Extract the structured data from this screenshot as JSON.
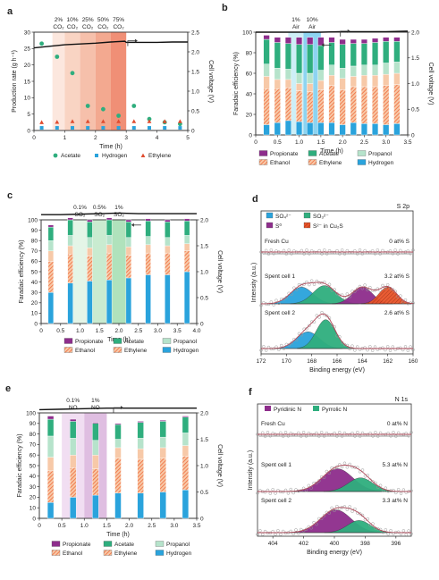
{
  "hatch": [
    "Ethanol",
    "Ethylene",
    "S^2- in Cu2S"
  ],
  "colors": {
    "propionate": "#8e2d8c",
    "ethanol": "#f06a3a",
    "acetate": "#2fae7e",
    "ethylene": "#f7c9a8",
    "propanol": "#b6e3cb",
    "hydrogen": "#2aa3dc",
    "voltage": "#111111",
    "so4": "#2aa3dc",
    "so3": "#2fae7e",
    "s0": "#8e2d8c",
    "s2": "#e8542a",
    "raw": "#9a9a9a",
    "fit": "#b24c5c",
    "pyridinic": "#8e2d8c",
    "pyrrolic": "#2fae7e"
  },
  "chart_data": [
    {
      "panel": "a",
      "type": "scatter",
      "title": "",
      "xlabel": "Time (h)",
      "ylabel": "Production rate (g h⁻¹)",
      "y2label": "Cell voltage (V)",
      "xlim": [
        0,
        5
      ],
      "ylim": [
        0,
        30
      ],
      "y2lim": [
        0,
        2.5
      ],
      "xticks": [
        "0",
        "1",
        "2",
        "3",
        "4",
        "5"
      ],
      "yticks": [
        "0",
        "5",
        "10",
        "15",
        "20",
        "25",
        "30"
      ],
      "y2ticks": [
        "0",
        "0.5",
        "1.0",
        "1.5",
        "2.0",
        "2.5"
      ],
      "regions": [
        {
          "label1": "2%",
          "label2": "CO₂",
          "x0": 0.6,
          "x1": 1.0
        },
        {
          "label1": "10%",
          "label2": "CO₂",
          "x0": 1.0,
          "x1": 1.5
        },
        {
          "label1": "25%",
          "label2": "CO₂",
          "x0": 1.5,
          "x1": 2.0
        },
        {
          "label1": "50%",
          "label2": "CO₂",
          "x0": 2.0,
          "x1": 2.5
        },
        {
          "label1": "75%",
          "label2": "CO₂",
          "x0": 2.5,
          "x1": 3.0
        }
      ],
      "series": [
        {
          "name": "Acetate",
          "x": [
            0.25,
            0.75,
            1.25,
            1.75,
            2.25,
            2.75,
            3.25,
            3.75,
            4.25,
            4.75
          ],
          "y": [
            26.5,
            22.5,
            17.5,
            7.5,
            6.5,
            4.5,
            7.5,
            3.5,
            2.5,
            2.0
          ]
        },
        {
          "name": "Hydrogen",
          "x": [
            0.25,
            0.75,
            1.25,
            1.75,
            2.25,
            2.75,
            3.25,
            3.75,
            4.25,
            4.75
          ],
          "y": [
            0.8,
            0.8,
            0.8,
            0.8,
            0.8,
            0.8,
            0.8,
            0.8,
            0.8,
            0.8
          ]
        },
        {
          "name": "Ethylene",
          "x": [
            0.25,
            0.75,
            1.25,
            1.75,
            2.25,
            2.75,
            3.25,
            3.75,
            4.25,
            4.75
          ],
          "y": [
            2.5,
            2.6,
            2.8,
            2.8,
            2.8,
            2.8,
            2.8,
            2.8,
            2.8,
            2.8
          ]
        }
      ],
      "voltage": {
        "x": [
          0,
          0.5,
          1,
          1.5,
          2,
          2.5,
          2.95,
          3.0,
          3.5,
          4,
          4.5,
          5
        ],
        "y": [
          2.1,
          2.14,
          2.18,
          2.2,
          2.22,
          2.25,
          2.27,
          2.24,
          2.24,
          2.24,
          2.25,
          2.25
        ]
      },
      "legend": [
        "Acetate",
        "Hydrogen",
        "Ethylene"
      ]
    },
    {
      "panel": "b",
      "type": "bar",
      "title": "",
      "xlabel": "Time (h)",
      "ylabel": "Faradaic efficiency (%)",
      "y2label": "Cell voltage (V)",
      "xlim": [
        0,
        3.5
      ],
      "ylim": [
        0,
        100
      ],
      "y2lim": [
        0,
        2.0
      ],
      "xticks": [
        "0",
        "0.5",
        "1.0",
        "1.5",
        "2.0",
        "2.5",
        "3.0",
        "3.5"
      ],
      "yticks": [
        "0",
        "20",
        "40",
        "60",
        "80",
        "100"
      ],
      "y2ticks": [
        "0",
        "0.5",
        "1.0",
        "1.5",
        "2.0"
      ],
      "regions": [
        {
          "label1": "1%",
          "label2": "Air",
          "x0": 0.75,
          "x1": 1.1
        },
        {
          "label1": "10%",
          "label2": "Air",
          "x0": 1.1,
          "x1": 1.5
        }
      ],
      "x": [
        0.25,
        0.5,
        0.75,
        1.0,
        1.25,
        1.5,
        1.75,
        2.0,
        2.25,
        2.5,
        2.75,
        3.0,
        3.25
      ],
      "stack": [
        {
          "name": "Hydrogen",
          "values": [
            10,
            12,
            14,
            13,
            12,
            12,
            12,
            10,
            12,
            11,
            11,
            10,
            11
          ]
        },
        {
          "name": "Ethylene",
          "values": [
            35,
            33,
            32,
            30,
            30,
            32,
            36,
            34,
            35,
            36,
            36,
            38,
            38
          ]
        },
        {
          "name": "Ethanol",
          "values": [
            12,
            9,
            8,
            7,
            8,
            9,
            10,
            11,
            10,
            11,
            11,
            11,
            11
          ]
        },
        {
          "name": "Propanol",
          "values": [
            12,
            11,
            10,
            10,
            10,
            10,
            10,
            10,
            10,
            10,
            10,
            11,
            11
          ]
        },
        {
          "name": "Acetate",
          "values": [
            24,
            25,
            25,
            28,
            28,
            24,
            22,
            23,
            22,
            21,
            22,
            21,
            20
          ]
        },
        {
          "name": "Propionate",
          "values": [
            4,
            5,
            6,
            7,
            7,
            8,
            5,
            5,
            4,
            4,
            4,
            4,
            4
          ]
        }
      ],
      "voltage": {
        "x": [
          0,
          0.5,
          1.0,
          1.5,
          2.0,
          2.5,
          3.0,
          3.5
        ],
        "y": [
          2.0,
          2.0,
          2.0,
          2.0,
          2.01,
          2.01,
          2.01,
          2.02
        ]
      },
      "legend": [
        "Propionate",
        "Acetate",
        "Propanol",
        "Ethanol",
        "Ethylene",
        "Hydrogen"
      ]
    },
    {
      "panel": "c",
      "type": "bar",
      "title": "",
      "xlabel": "Time (h)",
      "ylabel": "Faradaic efficiency (%)",
      "y2label": "Cell voltage (V)",
      "xlim": [
        0,
        4.0
      ],
      "ylim": [
        0,
        100
      ],
      "y2lim": [
        0,
        2.0
      ],
      "xticks": [
        "0",
        "0.5",
        "1.0",
        "1.5",
        "2.0",
        "2.5",
        "3.0",
        "3.5",
        "4.0"
      ],
      "yticks": [
        "0",
        "10",
        "20",
        "30",
        "40",
        "50",
        "60",
        "70",
        "80",
        "90",
        "100"
      ],
      "y2ticks": [
        "0",
        "0.5",
        "1.0",
        "1.5",
        "2.0"
      ],
      "regions": [
        {
          "label1": "0.1%",
          "label2": "SO₂",
          "x0": 0.75,
          "x1": 1.25
        },
        {
          "label1": "0.5%",
          "label2": "SO₂",
          "x0": 1.25,
          "x1": 1.75
        },
        {
          "label1": "1%",
          "label2": "SO₂",
          "x0": 1.75,
          "x1": 2.25
        }
      ],
      "x": [
        0.25,
        0.75,
        1.25,
        1.75,
        2.25,
        2.75,
        3.25,
        3.75
      ],
      "stack": [
        {
          "name": "Hydrogen",
          "values": [
            30,
            39,
            41,
            42,
            44,
            47,
            47,
            50
          ]
        },
        {
          "name": "Ethylene",
          "values": [
            30,
            28,
            24,
            26,
            22,
            21,
            21,
            20
          ]
        },
        {
          "name": "Ethanol",
          "values": [
            10,
            8,
            8,
            8,
            8,
            8,
            7,
            7
          ]
        },
        {
          "name": "Propanol",
          "values": [
            10,
            10,
            10,
            9,
            9,
            8,
            8,
            8
          ]
        },
        {
          "name": "Acetate",
          "values": [
            13,
            15,
            15,
            15,
            15,
            15,
            15,
            14
          ]
        },
        {
          "name": "Propionate",
          "values": [
            2,
            2,
            2,
            2,
            2,
            2,
            2,
            2
          ]
        }
      ],
      "voltage": {
        "x": [
          0,
          0.5,
          1.0,
          1.5,
          2.0,
          2.5,
          3.0,
          3.5,
          4.0
        ],
        "y": [
          2.1,
          2.1,
          2.11,
          2.12,
          2.13,
          2.12,
          2.12,
          2.12,
          2.12
        ]
      },
      "legend": [
        "Propionate",
        "Acetate",
        "Propanol",
        "Ethanol",
        "Ethylene",
        "Hydrogen"
      ]
    },
    {
      "panel": "d",
      "type": "line",
      "title": "S 2p",
      "xlabel": "Binding energy (eV)",
      "ylabel": "Intensity (a.u.)",
      "xlim": [
        172,
        160
      ],
      "xticks": [
        "172",
        "170",
        "168",
        "166",
        "164",
        "162",
        "160"
      ],
      "legend": [
        "SO₄²⁻",
        "SO₃²⁻",
        "S⁰",
        "S²⁻ in Cu₂S"
      ],
      "spectra": [
        {
          "label": "Fresh Cu",
          "value": "0 at% S",
          "peaks": []
        },
        {
          "label": "Spent cell 1",
          "value": "3.2 at% S",
          "peaks": [
            {
              "name": "SO₄²⁻",
              "center": 168.8,
              "height": 0.55,
              "width": 0.9
            },
            {
              "name": "SO₃²⁻",
              "center": 167.0,
              "height": 0.6,
              "width": 0.9
            },
            {
              "name": "S⁰",
              "center": 164.0,
              "height": 0.55,
              "width": 0.8
            },
            {
              "name": "S²⁻ in Cu₂S",
              "center": 162.0,
              "height": 0.55,
              "width": 0.7
            }
          ]
        },
        {
          "label": "Spent cell 2",
          "value": "2.6 at% S",
          "peaks": [
            {
              "name": "SO₄²⁻",
              "center": 168.3,
              "height": 0.55,
              "width": 0.9
            },
            {
              "name": "SO₃²⁻",
              "center": 166.9,
              "height": 0.95,
              "width": 0.75
            }
          ]
        }
      ]
    },
    {
      "panel": "e",
      "type": "bar",
      "title": "",
      "xlabel": "Time (h)",
      "ylabel": "Faradaic efficiency (%)",
      "y2label": "Cell voltage (V)",
      "xlim": [
        0,
        3.5
      ],
      "ylim": [
        0,
        100
      ],
      "y2lim": [
        0,
        2.0
      ],
      "xticks": [
        "0",
        "0.5",
        "1.0",
        "1.5",
        "2.0",
        "2.5",
        "3.0",
        "3.5"
      ],
      "yticks": [
        "0",
        "10",
        "20",
        "30",
        "40",
        "50",
        "60",
        "70",
        "80",
        "90",
        "100"
      ],
      "y2ticks": [
        "0",
        "0.5",
        "1.0",
        "1.5",
        "2.0"
      ],
      "regions": [
        {
          "label1": "0.1%",
          "label2": "NO",
          "x0": 0.5,
          "x1": 1.0
        },
        {
          "label1": "1%",
          "label2": "NO",
          "x0": 1.0,
          "x1": 1.5
        }
      ],
      "x": [
        0.25,
        0.75,
        1.25,
        1.75,
        2.25,
        2.75,
        3.25
      ],
      "stack": [
        {
          "name": "Hydrogen",
          "values": [
            15,
            20,
            22,
            24,
            24,
            25,
            27
          ]
        },
        {
          "name": "Ethylene",
          "values": [
            30,
            28,
            25,
            33,
            32,
            32,
            32
          ]
        },
        {
          "name": "Ethanol",
          "values": [
            13,
            12,
            13,
            10,
            10,
            10,
            10
          ]
        },
        {
          "name": "Propanol",
          "values": [
            20,
            16,
            14,
            8,
            10,
            10,
            12
          ]
        },
        {
          "name": "Acetate",
          "values": [
            16,
            16,
            16,
            14,
            15,
            15,
            15
          ]
        },
        {
          "name": "Propionate",
          "values": [
            3,
            2,
            1,
            1,
            1,
            1,
            1
          ]
        }
      ],
      "voltage": {
        "x": [
          0,
          0.5,
          1.0,
          1.5,
          2.0,
          2.5,
          3.0,
          3.5
        ],
        "y": [
          2.06,
          2.07,
          2.08,
          2.09,
          2.09,
          2.09,
          2.09,
          2.09
        ]
      },
      "legend": [
        "Propionate",
        "Acetate",
        "Propanol",
        "Ethanol",
        "Ethylene",
        "Hydrogen"
      ]
    },
    {
      "panel": "f",
      "type": "line",
      "title": "N 1s",
      "xlabel": "Binding energy (eV)",
      "ylabel": "Intensity (a.u.)",
      "xlim": [
        405,
        395
      ],
      "xticks": [
        "404",
        "402",
        "400",
        "398",
        "396"
      ],
      "legend": [
        "Pyridinic N",
        "Pyrrolic N"
      ],
      "spectra": [
        {
          "label": "Fresh Cu",
          "value": "0 at% N",
          "peaks": []
        },
        {
          "label": "Spent cell 1",
          "value": "5.3 at% N",
          "peaks": [
            {
              "name": "Pyridinic N",
              "center": 399.8,
              "height": 0.75,
              "width": 1.0
            },
            {
              "name": "Pyrrolic N",
              "center": 398.3,
              "height": 0.45,
              "width": 0.8
            }
          ]
        },
        {
          "label": "Spent cell 2",
          "value": "3.3 at% N",
          "peaks": [
            {
              "name": "Pyridinic N",
              "center": 399.9,
              "height": 0.75,
              "width": 1.0
            },
            {
              "name": "Pyrrolic N",
              "center": 398.4,
              "height": 0.4,
              "width": 0.75
            }
          ]
        }
      ]
    }
  ]
}
